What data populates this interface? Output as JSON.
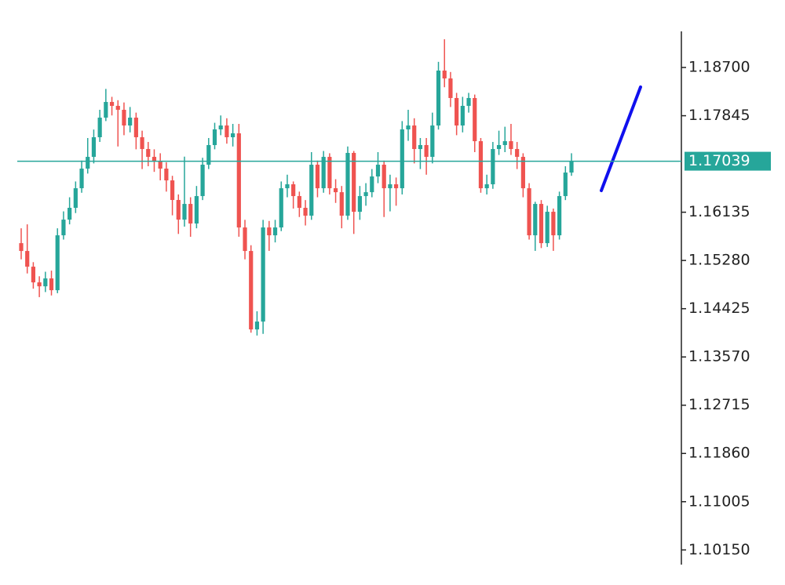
{
  "chart_data": {
    "type": "candlestick",
    "up_color": "#26a69a",
    "down_color": "#ef5350",
    "ylim": [
      1.0989,
      1.1934
    ],
    "yticks": [
      {
        "value": 1.187,
        "label": "1.18700"
      },
      {
        "value": 1.17845,
        "label": "1.17845"
      },
      {
        "value": 1.16135,
        "label": "1.16135"
      },
      {
        "value": 1.1528,
        "label": "1.15280"
      },
      {
        "value": 1.14425,
        "label": "1.14425"
      },
      {
        "value": 1.1357,
        "label": "1.13570"
      },
      {
        "value": 1.12715,
        "label": "1.12715"
      },
      {
        "value": 1.1186,
        "label": "1.11860"
      },
      {
        "value": 1.11005,
        "label": "1.11005"
      },
      {
        "value": 1.1015,
        "label": "1.10150"
      }
    ],
    "current_price": 1.17039,
    "current_price_color": "#26a69a",
    "open": [
      1.15587,
      1.15448,
      1.1517,
      1.14892,
      1.14822,
      1.14962,
      1.14753,
      1.15726,
      1.16004,
      1.16213,
      1.1656,
      1.16908,
      1.17116,
      1.17464,
      1.17811,
      1.18089,
      1.1802,
      1.1795,
      1.17672,
      1.17811,
      1.17464,
      1.17255,
      1.17116,
      1.17047,
      1.16908,
      1.16699,
      1.16352,
      1.16004,
      1.16282,
      1.15935,
      1.16421,
      1.16977,
      1.17325,
      1.17603,
      1.17672,
      1.17464,
      1.17533,
      1.15865,
      1.15448,
      1.14058,
      1.14197,
      1.15865,
      1.15726,
      1.15865,
      1.1656,
      1.1663,
      1.16421,
      1.16213,
      1.16074,
      1.16977,
      1.1656,
      1.17116,
      1.1656,
      1.1649,
      1.16074,
      1.17186,
      1.16143,
      1.16421,
      1.1649,
      1.16769,
      1.16977,
      1.1656,
      1.1663,
      1.1656,
      1.17603,
      1.17672,
      1.17255,
      1.17325,
      1.17116,
      1.17672,
      1.18645,
      1.18506,
      1.18159,
      1.17672,
      1.1802,
      1.18159,
      1.17394,
      1.1656,
      1.1663,
      1.17255,
      1.17325,
      1.17394,
      1.17255,
      1.17116,
      1.1656,
      1.15726,
      1.16282,
      1.15587,
      1.16143,
      1.15726,
      1.16421,
      1.16838
    ],
    "high": [
      1.1585,
      1.1592,
      1.1525,
      1.15,
      1.1508,
      1.151,
      1.1585,
      1.1615,
      1.164,
      1.1668,
      1.1705,
      1.1745,
      1.176,
      1.1795,
      1.1832,
      1.1818,
      1.1812,
      1.1808,
      1.18,
      1.179,
      1.1758,
      1.1738,
      1.1725,
      1.1718,
      1.1702,
      1.1678,
      1.1645,
      1.1712,
      1.164,
      1.166,
      1.171,
      1.1745,
      1.1772,
      1.1785,
      1.178,
      1.177,
      1.177,
      1.16,
      1.1555,
      1.1438,
      1.16,
      1.1598,
      1.16,
      1.1668,
      1.168,
      1.1668,
      1.165,
      1.1635,
      1.172,
      1.1705,
      1.1722,
      1.1718,
      1.1672,
      1.166,
      1.173,
      1.1722,
      1.166,
      1.1665,
      1.169,
      1.172,
      1.1705,
      1.168,
      1.1675,
      1.1775,
      1.1795,
      1.178,
      1.1745,
      1.1745,
      1.179,
      1.188,
      1.192,
      1.1862,
      1.1825,
      1.1818,
      1.1825,
      1.1822,
      1.1745,
      1.168,
      1.1738,
      1.1758,
      1.1765,
      1.177,
      1.1738,
      1.1718,
      1.1665,
      1.1632,
      1.1635,
      1.1625,
      1.162,
      1.165,
      1.1695,
      1.1718
    ],
    "low": [
      1.153,
      1.1505,
      1.1478,
      1.1463,
      1.1472,
      1.1466,
      1.147,
      1.1565,
      1.1592,
      1.1612,
      1.1648,
      1.1682,
      1.17,
      1.1738,
      1.1775,
      1.1785,
      1.173,
      1.175,
      1.1755,
      1.1725,
      1.169,
      1.1695,
      1.1685,
      1.167,
      1.165,
      1.1608,
      1.1575,
      1.1588,
      1.157,
      1.1585,
      1.1635,
      1.169,
      1.1725,
      1.175,
      1.1735,
      1.173,
      1.157,
      1.153,
      1.14,
      1.1395,
      1.1398,
      1.1545,
      1.156,
      1.158,
      1.164,
      1.162,
      1.1605,
      1.159,
      1.16,
      1.164,
      1.1648,
      1.1645,
      1.163,
      1.1585,
      1.16,
      1.1575,
      1.16,
      1.1625,
      1.164,
      1.1665,
      1.1605,
      1.1615,
      1.1625,
      1.1645,
      1.174,
      1.17,
      1.169,
      1.168,
      1.17,
      1.176,
      1.1835,
      1.18,
      1.175,
      1.1755,
      1.179,
      1.172,
      1.1648,
      1.1645,
      1.1655,
      1.1715,
      1.172,
      1.1715,
      1.169,
      1.164,
      1.1565,
      1.1545,
      1.155,
      1.1552,
      1.1545,
      1.1565,
      1.1635,
      1.1678
    ],
    "close": [
      1.15448,
      1.1517,
      1.14892,
      1.14822,
      1.14962,
      1.14753,
      1.15726,
      1.16004,
      1.16213,
      1.1656,
      1.16908,
      1.17116,
      1.17464,
      1.17811,
      1.18089,
      1.1802,
      1.1795,
      1.17672,
      1.17811,
      1.17464,
      1.17255,
      1.17116,
      1.17047,
      1.16908,
      1.16699,
      1.16352,
      1.16004,
      1.16282,
      1.15935,
      1.16421,
      1.16977,
      1.17325,
      1.17603,
      1.17672,
      1.17464,
      1.17533,
      1.15865,
      1.15448,
      1.14058,
      1.14197,
      1.15865,
      1.15726,
      1.15865,
      1.1656,
      1.1663,
      1.16421,
      1.16213,
      1.16074,
      1.16977,
      1.1656,
      1.17116,
      1.1656,
      1.1649,
      1.16074,
      1.17186,
      1.16143,
      1.16421,
      1.1649,
      1.16769,
      1.16977,
      1.1656,
      1.1663,
      1.1656,
      1.17603,
      1.17672,
      1.17255,
      1.17325,
      1.17116,
      1.17672,
      1.18645,
      1.18506,
      1.18159,
      1.17672,
      1.1802,
      1.18159,
      1.17394,
      1.1656,
      1.1663,
      1.17255,
      1.17325,
      1.17394,
      1.17255,
      1.17116,
      1.1656,
      1.15726,
      1.16282,
      1.15587,
      1.16143,
      1.15726,
      1.16421,
      1.16838,
      1.17039
    ]
  }
}
